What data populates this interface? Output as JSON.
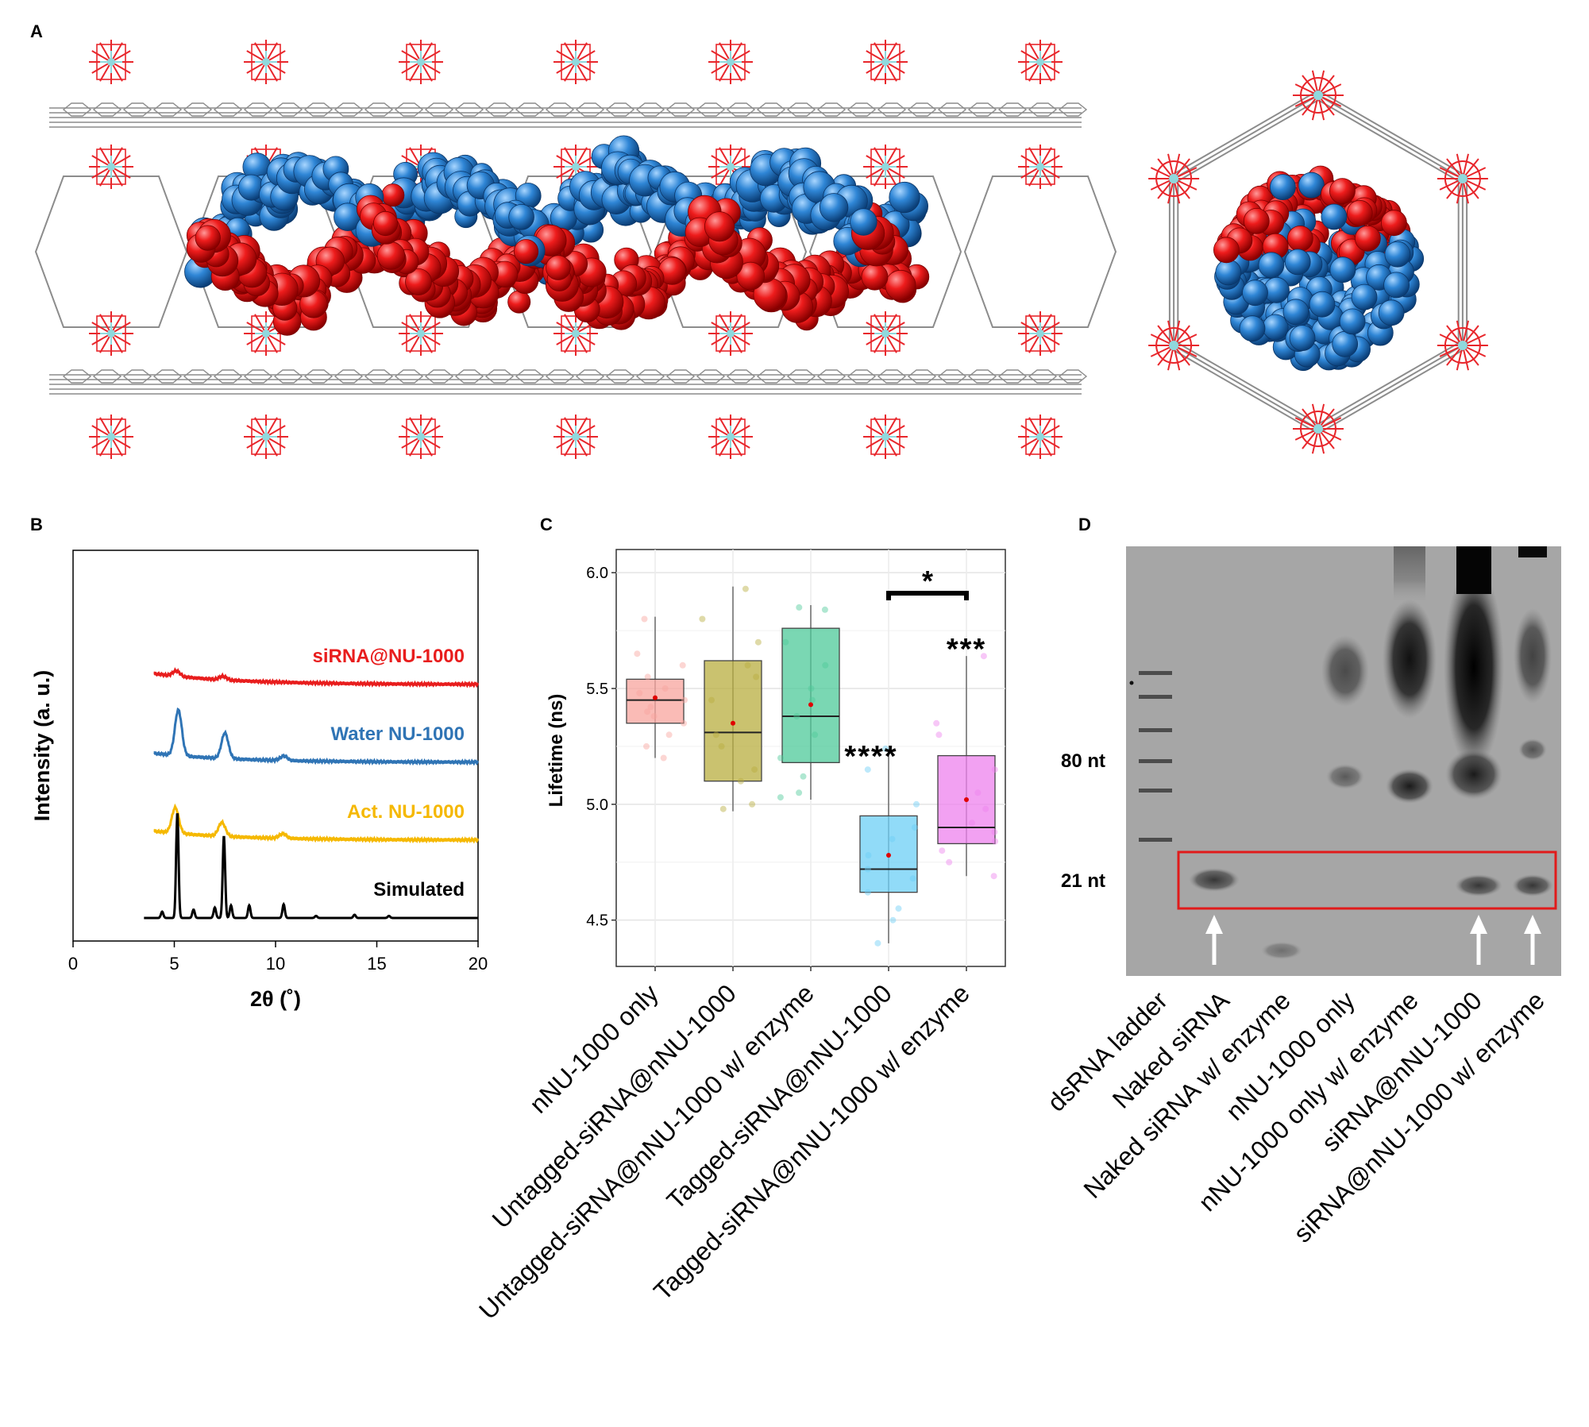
{
  "panels": {
    "A": {
      "label": "A"
    },
    "B": {
      "label": "B"
    },
    "C": {
      "label": "C"
    },
    "D": {
      "label": "D"
    }
  },
  "colors": {
    "red": "#ee1c1c",
    "blue": "#2f86d6",
    "mofGray": "#8c8c8c",
    "mofRed": "#e8262b",
    "zrCyan": "#8fd9dd"
  },
  "chart_data": [
    {
      "panel": "B",
      "type": "line",
      "title": "",
      "xlabel": "2θ (˚)",
      "ylabel": "Intensity (a. u.)",
      "xlim": [
        0,
        20
      ],
      "xticks": [
        0,
        5,
        10,
        15,
        20
      ],
      "y_ticks_shown": false,
      "series": [
        {
          "name": "siRNA@NU-1000",
          "color": "#e81d1d",
          "offset": 3.0,
          "peaks": [
            {
              "x": 5.1,
              "h": 0.06
            },
            {
              "x": 7.4,
              "h": 0.04
            }
          ],
          "base": [
            0.12,
            0.0
          ]
        },
        {
          "name": "Water NU-1000",
          "color": "#2f74b5",
          "offset": 2.0,
          "peaks": [
            {
              "x": 5.2,
              "h": 0.5
            },
            {
              "x": 7.5,
              "h": 0.28
            },
            {
              "x": 10.4,
              "h": 0.05
            }
          ],
          "base": [
            0.1,
            0.0
          ]
        },
        {
          "name": "Act. NU-1000",
          "color": "#f5b800",
          "offset": 1.0,
          "peaks": [
            {
              "x": 5.05,
              "h": 0.28
            },
            {
              "x": 7.35,
              "h": 0.15
            },
            {
              "x": 10.35,
              "h": 0.05
            }
          ],
          "base": [
            0.1,
            0.0
          ]
        },
        {
          "name": "Simulated",
          "color": "#000000",
          "offset": 0.0,
          "peaks": [
            {
              "x": 5.15,
              "h": 1.0
            },
            {
              "x": 7.45,
              "h": 0.78
            },
            {
              "x": 4.4,
              "h": 0.06
            },
            {
              "x": 5.95,
              "h": 0.08
            },
            {
              "x": 7.0,
              "h": 0.1
            },
            {
              "x": 7.8,
              "h": 0.12
            },
            {
              "x": 8.7,
              "h": 0.12
            },
            {
              "x": 10.4,
              "h": 0.13
            },
            {
              "x": 12.0,
              "h": 0.02
            },
            {
              "x": 13.9,
              "h": 0.03
            },
            {
              "x": 15.6,
              "h": 0.02
            }
          ],
          "base": [
            0.0,
            0.0
          ]
        }
      ]
    },
    {
      "panel": "C",
      "type": "box",
      "title": "",
      "xlabel": "",
      "ylabel": "Lifetime (ns)",
      "ylim": [
        4.3,
        6.1
      ],
      "yticks": [
        4.5,
        5.0,
        5.5,
        6.0
      ],
      "ytick_labels": [
        "4.5",
        "5.0",
        "5.5",
        "6.0"
      ],
      "categories": [
        "nNU-1000 only",
        "Untagged-siRNA@nNU-1000",
        "Untagged-siRNA@nNU-1000 w/ enzyme",
        "Tagged-siRNA@nNU-1000",
        "Tagged-siRNA@nNU-1000 w/ enzyme"
      ],
      "boxes": [
        {
          "min": 5.2,
          "q1": 5.35,
          "median": 5.45,
          "q3": 5.54,
          "max": 5.81,
          "mean": 5.46,
          "color": "#f8a49d",
          "points": [
            5.8,
            5.65,
            5.6,
            5.55,
            5.5,
            5.48,
            5.45,
            5.42,
            5.4,
            5.38,
            5.35,
            5.3,
            5.25,
            5.2
          ]
        },
        {
          "min": 4.97,
          "q1": 5.1,
          "median": 5.31,
          "q3": 5.62,
          "max": 5.94,
          "mean": 5.35,
          "color": "#b8ad3f",
          "points": [
            5.93,
            5.8,
            5.7,
            5.6,
            5.55,
            5.45,
            5.3,
            5.25,
            5.15,
            5.1,
            5.0,
            4.98
          ]
        },
        {
          "min": 5.02,
          "q1": 5.18,
          "median": 5.38,
          "q3": 5.76,
          "max": 5.86,
          "mean": 5.43,
          "color": "#4dc99a",
          "points": [
            5.85,
            5.84,
            5.7,
            5.6,
            5.5,
            5.45,
            5.38,
            5.3,
            5.2,
            5.12,
            5.05,
            5.03
          ]
        },
        {
          "min": 4.4,
          "q1": 4.62,
          "median": 4.72,
          "q3": 4.95,
          "max": 5.24,
          "mean": 4.78,
          "color": "#6ccff6",
          "points": [
            5.24,
            5.15,
            5.0,
            4.9,
            4.85,
            4.78,
            4.72,
            4.68,
            4.62,
            4.55,
            4.5,
            4.4
          ]
        },
        {
          "min": 4.69,
          "q1": 4.83,
          "median": 4.9,
          "q3": 5.21,
          "max": 5.64,
          "mean": 5.02,
          "color": "#ee82ee",
          "points": [
            5.64,
            5.35,
            5.3,
            5.15,
            5.05,
            4.98,
            4.92,
            4.88,
            4.84,
            4.8,
            4.75,
            4.69
          ]
        }
      ],
      "significance": [
        {
          "target": 3,
          "label": "****"
        },
        {
          "target": 4,
          "label": "***"
        },
        {
          "bracket": [
            3,
            4
          ],
          "label": "*"
        }
      ]
    },
    {
      "panel": "D",
      "type": "gel",
      "lanes": [
        "dsRNA ladder",
        "Naked siRNA",
        "Naked siRNA w/ enzyme",
        "nNU-1000 only",
        "nNU-1000 only w/ enzyme",
        "siRNA@nNU-1000",
        "siRNA@nNU-1000 w/ enzyme"
      ],
      "markers": [
        "80 nt",
        "21 nt"
      ],
      "highlight": "21 nt band region",
      "arrows_on_lanes": [
        1,
        5,
        6
      ]
    }
  ]
}
